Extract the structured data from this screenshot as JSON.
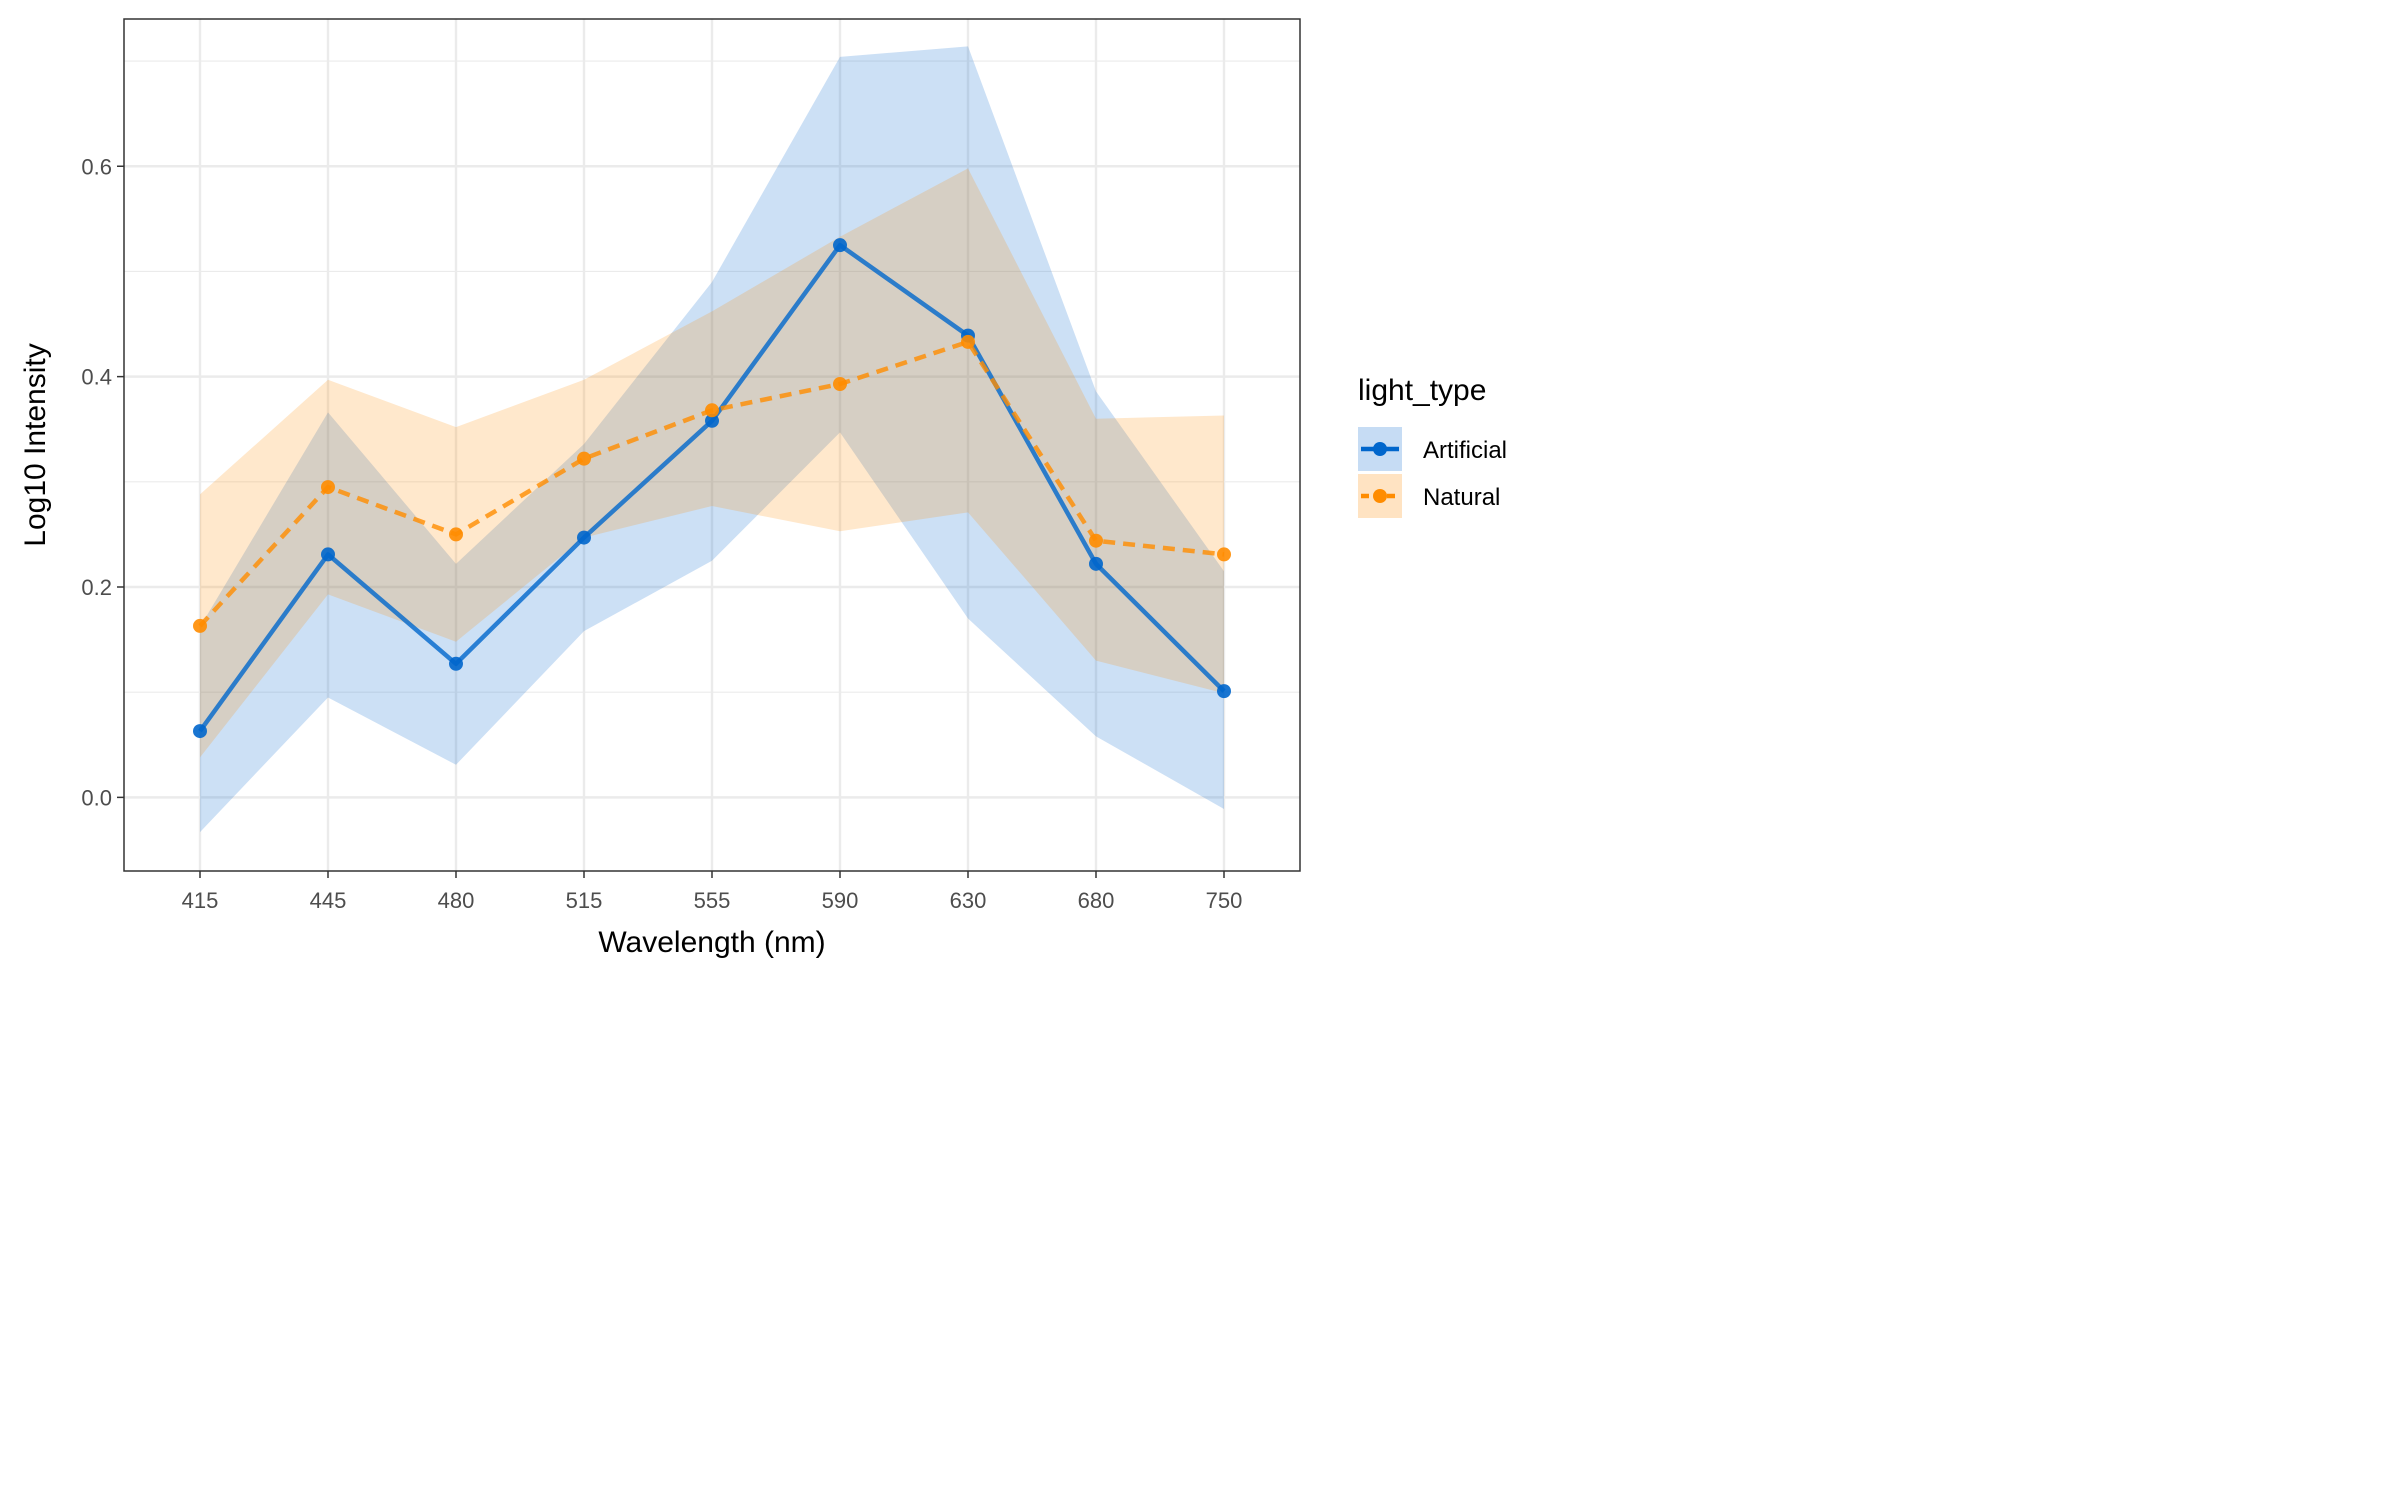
{
  "chart_data": {
    "type": "line",
    "title": "",
    "xlabel": "Wavelength (nm)",
    "ylabel": "Log10 Intensity",
    "categories": [
      "415",
      "445",
      "480",
      "515",
      "555",
      "590",
      "630",
      "680",
      "750"
    ],
    "y_ticks": [
      "0.0",
      "0.2",
      "0.4",
      "0.6"
    ],
    "ylim": [
      -0.07,
      0.74
    ],
    "grid": true,
    "legend": {
      "title": "light_type",
      "position": "right"
    },
    "series": [
      {
        "name": "Artificial",
        "color": "#0066CC",
        "line_style": "solid",
        "values": [
          0.063,
          0.231,
          0.127,
          0.247,
          0.358,
          0.525,
          0.439,
          0.222,
          0.101
        ],
        "ribbon_lower": [
          -0.033,
          0.095,
          0.031,
          0.158,
          0.225,
          0.347,
          0.17,
          0.058,
          -0.011
        ],
        "ribbon_upper": [
          0.162,
          0.366,
          0.222,
          0.336,
          0.49,
          0.704,
          0.714,
          0.386,
          0.215
        ]
      },
      {
        "name": "Natural",
        "color": "#FF8C00",
        "line_style": "dashed",
        "values": [
          0.163,
          0.295,
          0.25,
          0.322,
          0.368,
          0.393,
          0.433,
          0.244,
          0.231
        ],
        "ribbon_lower": [
          0.038,
          0.193,
          0.148,
          0.247,
          0.277,
          0.253,
          0.271,
          0.13,
          0.099
        ],
        "ribbon_upper": [
          0.288,
          0.397,
          0.352,
          0.397,
          0.462,
          0.533,
          0.598,
          0.36,
          0.363
        ]
      }
    ]
  }
}
